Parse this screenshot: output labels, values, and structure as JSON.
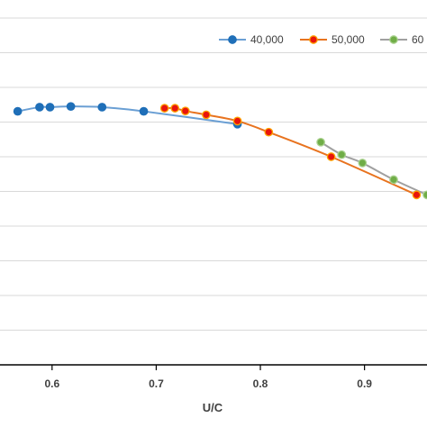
{
  "chart_data": {
    "type": "line",
    "xlabel": "U/C",
    "ylabel": "",
    "title": "",
    "xlim": [
      0.55,
      0.96
    ],
    "ylim": [
      0,
      10
    ],
    "grid": true,
    "legend_position": "top-right",
    "x_ticks": [
      "0.6",
      "0.7",
      "0.8",
      "0.9"
    ],
    "x_tick_values": [
      0.6,
      0.7,
      0.8,
      0.9
    ],
    "series": [
      {
        "name": "40,000",
        "color": "#1f6fb8",
        "marker_fill": "#1f6fb8",
        "marker_stroke": "#1f6fb8",
        "line_color": "#6a9fd4",
        "x": [
          0.567,
          0.588,
          0.598,
          0.618,
          0.648,
          0.688,
          0.778
        ],
        "y": [
          7.31,
          7.43,
          7.43,
          7.45,
          7.43,
          7.31,
          6.94
        ]
      },
      {
        "name": "50,000",
        "color": "#e8731f",
        "marker_fill": "#e8150d",
        "marker_stroke": "#ffa500",
        "line_color": "#e8731f",
        "x": [
          0.708,
          0.718,
          0.728,
          0.748,
          0.778,
          0.808,
          0.868,
          0.95
        ],
        "y": [
          7.4,
          7.4,
          7.32,
          7.21,
          7.03,
          6.71,
          6.0,
          4.9
        ]
      },
      {
        "name": "60",
        "color": "#a0a0a0",
        "marker_fill": "#70ad47",
        "marker_stroke": "#a9d18e",
        "line_color": "#a0a0a0",
        "x": [
          0.858,
          0.878,
          0.898,
          0.928,
          0.96
        ],
        "y": [
          6.42,
          6.06,
          5.82,
          5.34,
          4.9
        ]
      }
    ]
  }
}
